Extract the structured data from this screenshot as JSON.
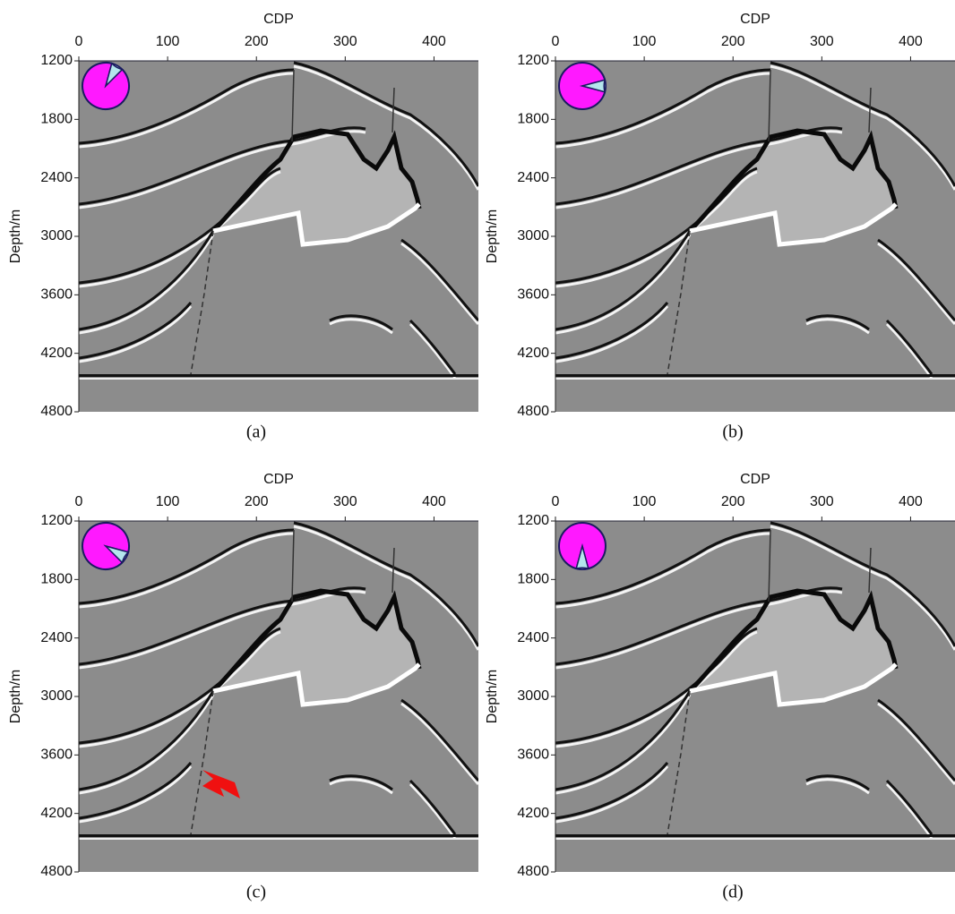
{
  "figure": {
    "panels": [
      {
        "caption": "(a)",
        "x_label": "CDP",
        "y_label": "Depth/m",
        "xlim": [
          0,
          450
        ],
        "ylim": [
          1200,
          4800
        ],
        "xticks": [
          0,
          100,
          200,
          300,
          400
        ],
        "yticks": [
          1200,
          1800,
          2400,
          3000,
          3600,
          4200,
          4800
        ]
      },
      {
        "caption": "(b)",
        "x_label": "CDP",
        "y_label": "Depth/m",
        "xlim": [
          0,
          450
        ],
        "ylim": [
          1200,
          4800
        ],
        "xticks": [
          0,
          100,
          200,
          300,
          400
        ],
        "yticks": [
          1200,
          1800,
          2400,
          3000,
          3600,
          4200,
          4800
        ]
      },
      {
        "caption": "(c)",
        "x_label": "CDP",
        "y_label": "Depth/m",
        "xlim": [
          0,
          450
        ],
        "ylim": [
          1200,
          4800
        ],
        "xticks": [
          0,
          100,
          200,
          300,
          400
        ],
        "yticks": [
          1200,
          1800,
          2400,
          3000,
          3600,
          4200,
          4800
        ]
      },
      {
        "caption": "(d)",
        "x_label": "CDP",
        "y_label": "Depth/m",
        "xlim": [
          0,
          450
        ],
        "ylim": [
          1200,
          4800
        ],
        "xticks": [
          0,
          100,
          200,
          300,
          400
        ],
        "yticks": [
          1200,
          1800,
          2400,
          3000,
          3600,
          4200,
          4800
        ]
      }
    ]
  }
}
